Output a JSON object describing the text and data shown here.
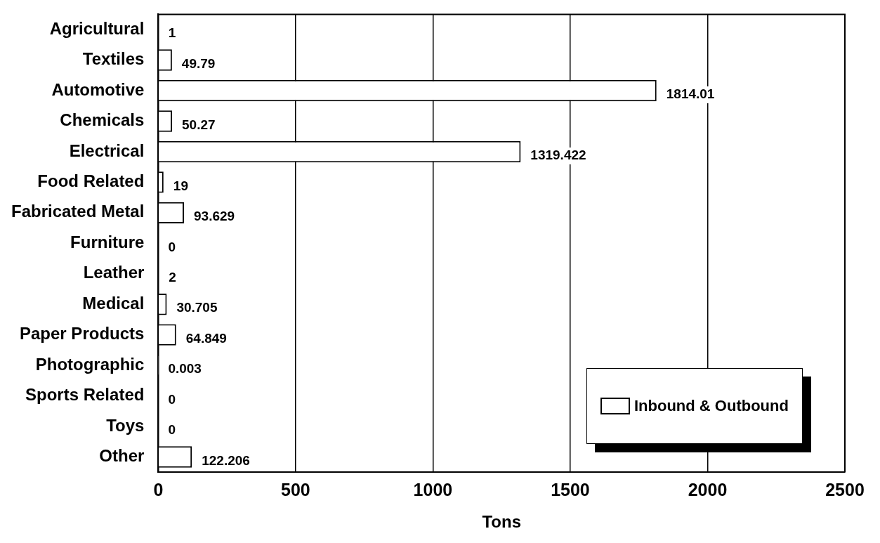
{
  "chart_data": {
    "type": "bar",
    "orientation": "horizontal",
    "xlabel": "Tons",
    "categories": [
      "Agricultural",
      "Textiles",
      "Automotive",
      "Chemicals",
      "Electrical",
      "Food Related",
      "Fabricated Metal",
      "Furniture",
      "Leather",
      "Medical",
      "Paper Products",
      "Photographic",
      "Sports Related",
      "Toys",
      "Other"
    ],
    "series": [
      {
        "name": "Inbound & Outbound",
        "color": "#ffffff",
        "values": [
          1,
          49.79,
          1814.01,
          50.27,
          1319.422,
          19,
          93.629,
          0,
          2,
          30.705,
          64.849,
          0.003,
          0,
          0,
          122.206
        ]
      }
    ],
    "xlim": [
      0,
      2500
    ],
    "xticks": [
      0,
      500,
      1000,
      1500,
      2000,
      2500
    ],
    "grid": "x",
    "legend": "bottom right",
    "data_labels": true
  }
}
